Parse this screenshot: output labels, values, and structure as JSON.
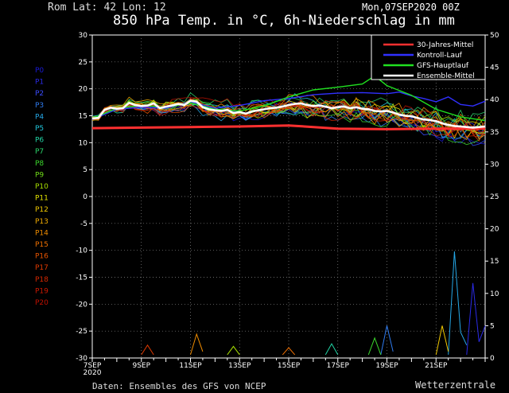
{
  "header": {
    "location": "Rom   Lat: 42 Lon: 12",
    "run": "Mon,07SEP2020 00Z",
    "title": "850 hPa Temp. in °C, 6h-Niederschlag in mm",
    "source": "Daten: Ensembles des GFS von NCEP",
    "brand": "Wetterzentrale"
  },
  "members": [
    {
      "label": "P0",
      "color": "#1a1ad8"
    },
    {
      "label": "P1",
      "color": "#2a2ae6"
    },
    {
      "label": "P2",
      "color": "#3a4cff"
    },
    {
      "label": "P3",
      "color": "#2f7cf0"
    },
    {
      "label": "P4",
      "color": "#25a8e8"
    },
    {
      "label": "P5",
      "color": "#21c6dc"
    },
    {
      "label": "P6",
      "color": "#21d6a6"
    },
    {
      "label": "P7",
      "color": "#2ad46a"
    },
    {
      "label": "P8",
      "color": "#3ad82c"
    },
    {
      "label": "P9",
      "color": "#70dc18"
    },
    {
      "label": "P10",
      "color": "#a8e000"
    },
    {
      "label": "P11",
      "color": "#e2e200"
    },
    {
      "label": "P12",
      "color": "#f0c800"
    },
    {
      "label": "P13",
      "color": "#f0aa00"
    },
    {
      "label": "P14",
      "color": "#f08c00"
    },
    {
      "label": "P15",
      "color": "#f07000"
    },
    {
      "label": "P16",
      "color": "#e85400"
    },
    {
      "label": "P17",
      "color": "#e03a00"
    },
    {
      "label": "P18",
      "color": "#d82800"
    },
    {
      "label": "P19",
      "color": "#cc1800"
    },
    {
      "label": "P20",
      "color": "#c01000"
    }
  ],
  "chart_data": {
    "type": "line",
    "x_unit": "days since run start (07SEP2020 00Z), 6-hourly",
    "x_range": [
      0,
      16
    ],
    "x_ticks": [
      {
        "day": 0,
        "label": "7SEP"
      },
      {
        "day": 2,
        "label": "9SEP"
      },
      {
        "day": 4,
        "label": "11SEP"
      },
      {
        "day": 6,
        "label": "13SEP"
      },
      {
        "day": 8,
        "label": "15SEP"
      },
      {
        "day": 10,
        "label": "17SEP"
      },
      {
        "day": 12,
        "label": "19SEP"
      },
      {
        "day": 14,
        "label": "21SEP"
      }
    ],
    "x_year_label": "2020",
    "y_left": {
      "range": [
        -30,
        30
      ],
      "step": 5,
      "unit": "°C"
    },
    "y_right": {
      "range": [
        0,
        50
      ],
      "step": 5,
      "unit": "mm"
    },
    "grid": true,
    "legend_position": "top-right",
    "legend": [
      {
        "name": "30-Jahres-Mittel",
        "color": "#ff3030"
      },
      {
        "name": "Kontroll-Lauf",
        "color": "#3030ff"
      },
      {
        "name": "GFS-Hauptlauf",
        "color": "#20e020"
      },
      {
        "name": "Ensemble-Mittel",
        "color": "#ffffff"
      }
    ],
    "climate_mean": [
      [
        0,
        12.7
      ],
      [
        2,
        12.8
      ],
      [
        4,
        12.9
      ],
      [
        6,
        13.0
      ],
      [
        8,
        13.2
      ],
      [
        10,
        12.6
      ],
      [
        12,
        12.5
      ],
      [
        14,
        12.6
      ],
      [
        16,
        12.6
      ]
    ],
    "ensemble_mean": [
      [
        0,
        14.5
      ],
      [
        0.25,
        14.6
      ],
      [
        0.5,
        16.1
      ],
      [
        0.75,
        16.5
      ],
      [
        1,
        16.3
      ],
      [
        1.25,
        16.4
      ],
      [
        1.5,
        17.4
      ],
      [
        1.75,
        17.0
      ],
      [
        2,
        16.8
      ],
      [
        2.25,
        16.9
      ],
      [
        2.5,
        17.3
      ],
      [
        2.75,
        16.4
      ],
      [
        3,
        16.7
      ],
      [
        3.25,
        16.9
      ],
      [
        3.5,
        17.2
      ],
      [
        3.75,
        17.0
      ],
      [
        4,
        17.8
      ],
      [
        4.25,
        17.6
      ],
      [
        4.5,
        16.6
      ],
      [
        4.75,
        16.2
      ],
      [
        5,
        16.0
      ],
      [
        5.25,
        15.9
      ],
      [
        5.5,
        16.1
      ],
      [
        5.75,
        15.5
      ],
      [
        6,
        15.7
      ],
      [
        6.25,
        15.4
      ],
      [
        6.5,
        15.8
      ],
      [
        6.75,
        16.0
      ],
      [
        7,
        16.2
      ],
      [
        7.25,
        16.4
      ],
      [
        7.5,
        16.5
      ],
      [
        7.75,
        16.7
      ],
      [
        8,
        17.0
      ],
      [
        8.25,
        17.2
      ],
      [
        8.5,
        17.3
      ],
      [
        8.75,
        17.0
      ],
      [
        9,
        16.8
      ],
      [
        9.25,
        16.9
      ],
      [
        9.5,
        16.7
      ],
      [
        9.75,
        16.4
      ],
      [
        10,
        16.6
      ],
      [
        10.25,
        16.7
      ],
      [
        10.5,
        16.4
      ],
      [
        10.75,
        16.6
      ],
      [
        11,
        16.3
      ],
      [
        11.25,
        16.2
      ],
      [
        11.5,
        15.9
      ],
      [
        11.75,
        15.8
      ],
      [
        12,
        15.9
      ],
      [
        12.25,
        15.6
      ],
      [
        12.5,
        15.2
      ],
      [
        12.75,
        15.0
      ],
      [
        13,
        14.9
      ],
      [
        13.25,
        14.6
      ],
      [
        13.5,
        14.3
      ],
      [
        13.75,
        14.2
      ],
      [
        14,
        14.0
      ],
      [
        14.25,
        13.6
      ],
      [
        14.5,
        13.3
      ],
      [
        14.75,
        13.1
      ],
      [
        15,
        13.0
      ],
      [
        15.25,
        12.9
      ],
      [
        15.5,
        12.8
      ],
      [
        15.75,
        12.9
      ],
      [
        16,
        13.0
      ]
    ],
    "control_run": [
      [
        0,
        14.3
      ],
      [
        1,
        16.2
      ],
      [
        2,
        16.6
      ],
      [
        3,
        16.4
      ],
      [
        4,
        17.6
      ],
      [
        5,
        16.4
      ],
      [
        6,
        16.9
      ],
      [
        7,
        17.8
      ],
      [
        8,
        18.2
      ],
      [
        9,
        18.9
      ],
      [
        10,
        19.2
      ],
      [
        11,
        19.3
      ],
      [
        12,
        19.1
      ],
      [
        12.5,
        19.4
      ],
      [
        13,
        18.7
      ],
      [
        13.5,
        18.2
      ],
      [
        14,
        17.6
      ],
      [
        14.5,
        18.5
      ],
      [
        15,
        17.1
      ],
      [
        15.5,
        16.8
      ],
      [
        16,
        17.7
      ]
    ],
    "gfs_main": [
      [
        0,
        14.5
      ],
      [
        1,
        16.4
      ],
      [
        2,
        16.9
      ],
      [
        3,
        16.6
      ],
      [
        4,
        17.4
      ],
      [
        5,
        16.2
      ],
      [
        6,
        15.9
      ],
      [
        7,
        16.8
      ],
      [
        8,
        18.5
      ],
      [
        9,
        19.8
      ],
      [
        10,
        20.3
      ],
      [
        11,
        20.9
      ],
      [
        11.5,
        22.4
      ],
      [
        12,
        20.6
      ],
      [
        13,
        18.8
      ],
      [
        14,
        16.2
      ],
      [
        15,
        14.8
      ],
      [
        16,
        14.1
      ]
    ],
    "precip_series": [
      {
        "member": "P4",
        "color": "#25a8e8",
        "values": [
          [
            14.5,
            0.5
          ],
          [
            14.75,
            16.5
          ],
          [
            15.0,
            4.0
          ],
          [
            15.25,
            2.0
          ]
        ]
      },
      {
        "member": "P1",
        "color": "#2a2ae6",
        "values": [
          [
            15.25,
            0.5
          ],
          [
            15.5,
            11.6
          ],
          [
            15.75,
            2.5
          ],
          [
            16.0,
            5.0
          ]
        ]
      },
      {
        "member": "P3",
        "color": "#2f7cf0",
        "values": [
          [
            11.75,
            0.5
          ],
          [
            12.0,
            5.0
          ],
          [
            12.25,
            1.0
          ]
        ]
      },
      {
        "member": "P12",
        "color": "#f0c800",
        "values": [
          [
            14.0,
            0.5
          ],
          [
            14.25,
            5.0
          ],
          [
            14.5,
            1.0
          ]
        ]
      },
      {
        "member": "P14",
        "color": "#f08c00",
        "values": [
          [
            4.0,
            0.5
          ],
          [
            4.25,
            3.7
          ],
          [
            4.5,
            1.0
          ]
        ]
      },
      {
        "member": "P8",
        "color": "#3ad82c",
        "values": [
          [
            11.25,
            0.5
          ],
          [
            11.5,
            3.1
          ],
          [
            11.75,
            0.5
          ]
        ]
      },
      {
        "member": "P17",
        "color": "#e03a00",
        "values": [
          [
            2.0,
            0.5
          ],
          [
            2.25,
            2.0
          ],
          [
            2.5,
            0.5
          ]
        ]
      },
      {
        "member": "P6",
        "color": "#21d6a6",
        "values": [
          [
            9.5,
            0.5
          ],
          [
            9.75,
            2.2
          ],
          [
            10.0,
            0.5
          ]
        ]
      },
      {
        "member": "P10",
        "color": "#a8e000",
        "values": [
          [
            5.5,
            0.5
          ],
          [
            5.75,
            1.8
          ],
          [
            6.0,
            0.5
          ]
        ]
      },
      {
        "member": "P15",
        "color": "#f07000",
        "values": [
          [
            7.75,
            0.5
          ],
          [
            8.0,
            1.6
          ],
          [
            8.25,
            0.5
          ]
        ]
      }
    ]
  }
}
